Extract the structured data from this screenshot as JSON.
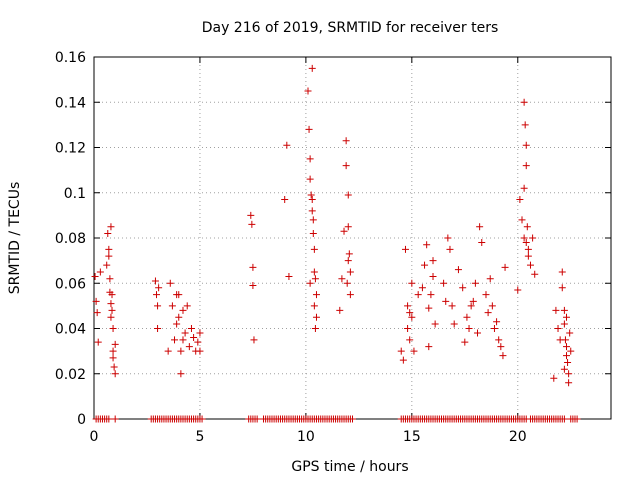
{
  "chart_data": {
    "type": "scatter",
    "title": "Day 216 of 2019, SRMTID for receiver ters",
    "xlabel": "GPS time / hours",
    "ylabel": "SRMTID / TECUs",
    "xlim": [
      0,
      24.4
    ],
    "ylim": [
      0,
      0.16
    ],
    "xticks": [
      0,
      5,
      10,
      15,
      20
    ],
    "xtick_labels": [
      "0",
      "5",
      "10",
      "15",
      "20"
    ],
    "yticks": [
      0,
      0.02,
      0.04,
      0.06,
      0.08,
      0.1,
      0.12,
      0.14,
      0.16
    ],
    "ytick_labels": [
      "0",
      "0.02",
      "0.04",
      "0.06",
      "0.08",
      "0.1",
      "0.12",
      "0.14",
      "0.16"
    ],
    "grid": true,
    "marker": "+",
    "color": "#cc0000",
    "series": [
      {
        "name": "SRMTID",
        "x": [
          0.05,
          0.1,
          0.15,
          0.2,
          0.3,
          0.6,
          0.65,
          0.7,
          0.75,
          0.75,
          0.8,
          0.8,
          0.85,
          0.85,
          0.9,
          0.9,
          0.95,
          1.0,
          1.0,
          0.7,
          0.8,
          0.9,
          2.9,
          2.95,
          3.0,
          3.0,
          3.05,
          3.5,
          3.6,
          3.7,
          3.8,
          3.9,
          4.0,
          4.0,
          4.1,
          4.1,
          4.2,
          4.3,
          4.4,
          4.5,
          4.6,
          4.7,
          4.8,
          4.9,
          5.0,
          5.0,
          3.9,
          4.2,
          7.4,
          7.45,
          7.5,
          7.5,
          7.55,
          9.0,
          9.1,
          9.2,
          10.1,
          10.15,
          10.2,
          10.2,
          10.25,
          10.3,
          10.3,
          10.35,
          10.35,
          10.4,
          10.4,
          10.45,
          10.5,
          10.5,
          10.3,
          10.4,
          10.2,
          10.45,
          11.6,
          11.7,
          11.8,
          11.9,
          11.9,
          12.0,
          12.0,
          12.05,
          12.1,
          12.1,
          11.95,
          12.0,
          14.5,
          14.6,
          14.7,
          14.8,
          14.8,
          14.9,
          14.9,
          15.0,
          15.0,
          15.1,
          15.3,
          15.5,
          15.6,
          15.7,
          15.8,
          15.9,
          16.0,
          16.1,
          16.0,
          15.8,
          16.5,
          16.6,
          16.7,
          16.8,
          16.9,
          17.0,
          17.2,
          17.4,
          17.5,
          17.6,
          17.7,
          17.8,
          17.9,
          18.0,
          18.1,
          18.2,
          18.3,
          18.5,
          18.6,
          18.7,
          18.8,
          18.9,
          19.0,
          19.1,
          19.2,
          19.3,
          19.4,
          20.0,
          20.1,
          20.2,
          20.3,
          20.3,
          20.35,
          20.4,
          20.4,
          20.45,
          20.5,
          20.5,
          20.6,
          20.7,
          20.8,
          20.3,
          20.4,
          21.7,
          21.8,
          21.9,
          22.0,
          22.1,
          22.1,
          22.2,
          22.2,
          22.25,
          22.3,
          22.3,
          22.35,
          22.4,
          22.4,
          22.45,
          22.5,
          22.2,
          22.3
        ],
        "y": [
          0.063,
          0.052,
          0.047,
          0.034,
          0.065,
          0.068,
          0.082,
          0.075,
          0.062,
          0.056,
          0.051,
          0.045,
          0.055,
          0.048,
          0.04,
          0.03,
          0.023,
          0.033,
          0.02,
          0.072,
          0.085,
          0.027,
          0.061,
          0.055,
          0.05,
          0.04,
          0.058,
          0.03,
          0.06,
          0.05,
          0.035,
          0.042,
          0.055,
          0.045,
          0.03,
          0.02,
          0.048,
          0.038,
          0.05,
          0.032,
          0.04,
          0.036,
          0.03,
          0.034,
          0.038,
          0.03,
          0.055,
          0.035,
          0.09,
          0.086,
          0.067,
          0.059,
          0.035,
          0.097,
          0.121,
          0.063,
          0.145,
          0.128,
          0.115,
          0.106,
          0.099,
          0.097,
          0.092,
          0.088,
          0.082,
          0.075,
          0.065,
          0.062,
          0.055,
          0.045,
          0.155,
          0.05,
          0.06,
          0.04,
          0.048,
          0.062,
          0.083,
          0.123,
          0.112,
          0.099,
          0.085,
          0.073,
          0.065,
          0.055,
          0.06,
          0.07,
          0.03,
          0.026,
          0.075,
          0.05,
          0.04,
          0.047,
          0.035,
          0.06,
          0.045,
          0.03,
          0.055,
          0.058,
          0.068,
          0.077,
          0.049,
          0.055,
          0.063,
          0.042,
          0.07,
          0.032,
          0.06,
          0.052,
          0.08,
          0.075,
          0.05,
          0.042,
          0.066,
          0.058,
          0.034,
          0.045,
          0.04,
          0.05,
          0.052,
          0.06,
          0.038,
          0.085,
          0.078,
          0.055,
          0.047,
          0.062,
          0.05,
          0.04,
          0.043,
          0.035,
          0.032,
          0.028,
          0.067,
          0.057,
          0.097,
          0.088,
          0.08,
          0.14,
          0.13,
          0.121,
          0.112,
          0.085,
          0.075,
          0.072,
          0.068,
          0.08,
          0.064,
          0.102,
          0.078,
          0.018,
          0.048,
          0.04,
          0.035,
          0.065,
          0.058,
          0.048,
          0.042,
          0.035,
          0.032,
          0.028,
          0.025,
          0.02,
          0.016,
          0.038,
          0.03,
          0.022,
          0.045
        ]
      }
    ],
    "zero_x": [
      0.1,
      0.2,
      0.3,
      0.4,
      0.5,
      0.6,
      0.7,
      1.0,
      2.7,
      2.8,
      2.9,
      3.0,
      3.1,
      3.2,
      3.3,
      3.4,
      3.5,
      3.6,
      3.7,
      3.8,
      3.9,
      4.0,
      4.1,
      4.2,
      4.3,
      4.4,
      4.5,
      4.6,
      4.7,
      4.8,
      4.9,
      5.0,
      5.1,
      7.3,
      7.4,
      7.5,
      7.6,
      7.7,
      8.0,
      8.1,
      8.2,
      8.3,
      8.4,
      8.5,
      8.6,
      8.7,
      8.8,
      8.9,
      9.0,
      9.1,
      9.2,
      9.3,
      9.4,
      9.5,
      9.6,
      9.7,
      9.8,
      9.9,
      10.0,
      10.1,
      10.2,
      10.3,
      10.4,
      10.5,
      10.6,
      10.7,
      10.8,
      10.9,
      11.0,
      11.1,
      11.2,
      11.3,
      11.4,
      11.5,
      11.6,
      11.7,
      11.8,
      11.9,
      12.0,
      12.1,
      12.2,
      14.5,
      14.6,
      14.7,
      14.8,
      14.9,
      15.0,
      15.1,
      15.2,
      15.3,
      15.4,
      15.5,
      15.6,
      15.7,
      15.8,
      15.9,
      16.0,
      16.1,
      16.2,
      16.3,
      16.4,
      16.5,
      16.6,
      16.7,
      16.8,
      16.9,
      17.0,
      17.1,
      17.2,
      17.3,
      17.4,
      17.5,
      17.6,
      17.7,
      17.8,
      17.9,
      18.0,
      18.1,
      18.2,
      18.3,
      18.4,
      18.5,
      18.6,
      18.7,
      18.8,
      18.9,
      19.0,
      19.1,
      19.2,
      19.3,
      19.4,
      19.5,
      19.6,
      19.7,
      19.8,
      19.9,
      20.0,
      20.1,
      20.2,
      20.3,
      20.4,
      20.6,
      20.7,
      20.8,
      20.9,
      21.0,
      21.1,
      21.2,
      21.3,
      21.4,
      21.5,
      21.6,
      21.7,
      21.8,
      21.9,
      22.0,
      22.1,
      22.2,
      22.5,
      22.6,
      22.7,
      22.8
    ]
  }
}
